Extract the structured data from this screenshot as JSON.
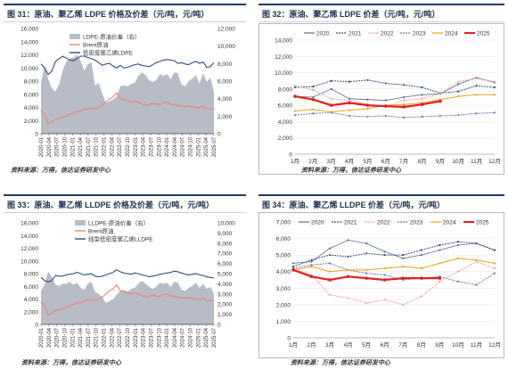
{
  "panels": [
    {
      "title": "图 31：原油、聚乙烯 LDPE 价格及价差（元/吨，元/吨）",
      "source": "资料来源：万得，信达证券研发中心"
    },
    {
      "title": "图 32：原油、聚乙烯 LDPE 价差（元/吨，元/吨）",
      "source": "资料来源：万得，信达证券研发中心"
    },
    {
      "title": "图 33：原油、聚乙烯 LLDPE 价格及价差（元/吨，元/吨）",
      "source": "资料来源：万得，信达证券研发中心"
    },
    {
      "title": "图 34：原油、聚乙烯 LLDPE 价差（元/吨，元/吨）",
      "source": "资料来源：万得，信达证券研发中心"
    }
  ],
  "chart_data": [
    {
      "type": "line",
      "left_ticks": [
        "0",
        "2,000",
        "4,000",
        "6,000",
        "8,000",
        "10,000",
        "12,000",
        "14,000",
        "16,000"
      ],
      "right_ticks": [
        "0",
        "2,000",
        "4,000",
        "6,000",
        "8,000",
        "10,000",
        "12,000"
      ],
      "ylim": [
        0,
        16000
      ],
      "y2lim": [
        0,
        12000
      ],
      "x_ticks": [
        "2020-01",
        "2020-04",
        "2020-07",
        "2020-10",
        "2021-01",
        "2021-04",
        "2021-07",
        "2021-10",
        "2022-01",
        "2022-04",
        "2022-07",
        "2022-10",
        "2023-01",
        "2023-04",
        "2023-07",
        "2023-10",
        "2024-01",
        "2024-04",
        "2024-07",
        "2024-10",
        "2025-01",
        "2025-04",
        "2025-07"
      ],
      "series": [
        {
          "name": "LDPE-原油价差（右）",
          "kind": "area",
          "axis": "right",
          "color": "#b7bcc6",
          "values": [
            5800,
            7800,
            6200,
            5200,
            4800,
            5600,
            7200,
            8200,
            8600,
            8700,
            9000,
            8300,
            7200,
            7900,
            8200,
            5500,
            5800,
            4600,
            3500,
            3700,
            3900,
            4200,
            5400,
            5500,
            5400,
            5700,
            5800,
            6600,
            7000,
            6700,
            6100,
            5900,
            6100,
            6800,
            6600,
            6800,
            6200,
            7000,
            6900,
            5600,
            5400,
            6000,
            6300,
            6700,
            5700,
            6900,
            5900,
            6400,
            4800
          ]
        },
        {
          "name": "Brent原油",
          "kind": "line",
          "axis": "left",
          "color": "#f08078",
          "values": [
            3600,
            3000,
            1500,
            1800,
            2200,
            2300,
            2500,
            2700,
            3000,
            3100,
            3400,
            3400,
            3700,
            3800,
            3900,
            3800,
            4000,
            4300,
            4800,
            5300,
            5600,
            6200,
            5300,
            5200,
            5000,
            4800,
            5000,
            4800,
            4500,
            4300,
            4400,
            4600,
            4500,
            4400,
            4700,
            4800,
            4500,
            4400,
            4300,
            4200,
            4100,
            4200,
            4100,
            4000,
            3900,
            4200,
            3800,
            3700,
            3800
          ]
        },
        {
          "name": "低密度聚乙烯LDPE",
          "kind": "line",
          "axis": "left",
          "color": "#2e4c7a",
          "values": [
            10600,
            10000,
            9000,
            9500,
            11000,
            11400,
            11800,
            11500,
            11200,
            11100,
            11400,
            11800,
            11800,
            11600,
            11400,
            11200,
            10800,
            10400,
            10600,
            10700,
            10300,
            10000,
            10400,
            10000,
            10100,
            10300,
            10500,
            10600,
            10400,
            10300,
            10200,
            10500,
            10800,
            11000,
            11200,
            11300,
            11200,
            11100,
            10700,
            10800,
            10600,
            10500,
            10800,
            11000,
            10700,
            10900,
            10100,
            10200,
            10800
          ]
        }
      ]
    },
    {
      "type": "line",
      "ylim": [
        0,
        14000
      ],
      "y_ticks": [
        "0",
        "2,000",
        "4,000",
        "6,000",
        "8,000",
        "10,000",
        "12,000",
        "14,000"
      ],
      "categories": [
        "1月",
        "2月",
        "3月",
        "4月",
        "5月",
        "6月",
        "7月",
        "8月",
        "9月",
        "10月",
        "11月",
        "12月"
      ],
      "series": [
        {
          "name": "2020",
          "color": "#5d6d85",
          "dash": "none",
          "width": 0.8,
          "values": [
            7100,
            7000,
            8000,
            6800,
            6700,
            6600,
            7000,
            7300,
            7400,
            8600,
            9400,
            8800
          ]
        },
        {
          "name": "2021",
          "color": "#3c4f7e",
          "dash": "2,1",
          "width": 1.0,
          "values": [
            8200,
            8300,
            9000,
            8900,
            9100,
            8700,
            8500,
            8200,
            7500,
            7700,
            8400,
            8200
          ]
        },
        {
          "name": "2022",
          "color": "#f4a0a0",
          "dash": "2,1",
          "width": 1.0,
          "values": [
            8400,
            7900,
            6800,
            6600,
            6100,
            5800,
            6600,
            6800,
            7400,
            8900,
            9300,
            8900
          ]
        },
        {
          "name": "2023",
          "color": "#7878b8",
          "dash": "2,1",
          "width": 1.0,
          "values": [
            4800,
            5000,
            5100,
            4700,
            4600,
            4700,
            4500,
            4600,
            4700,
            4800,
            5000,
            5100
          ]
        },
        {
          "name": "2024",
          "color": "#f0a020",
          "dash": "none",
          "width": 1.0,
          "values": [
            5300,
            5500,
            5200,
            5400,
            5600,
            6000,
            6100,
            6300,
            6700,
            7100,
            7300,
            7300
          ]
        },
        {
          "name": "2025",
          "color": "#e02020",
          "dash": "none",
          "width": 2.2,
          "values": [
            7100,
            6700,
            6000,
            6300,
            6000,
            5900,
            5800,
            6100,
            6500,
            null,
            null,
            null
          ]
        }
      ]
    },
    {
      "type": "line",
      "left_ticks": [
        "0",
        "2,000",
        "4,000",
        "6,000",
        "8,000",
        "10,000",
        "12,000",
        "14,000",
        "16,000"
      ],
      "right_ticks": [
        "0",
        "1,000",
        "2,000",
        "3,000",
        "4,000",
        "5,000",
        "6,000",
        "7,000",
        "8,000",
        "9,000",
        "10,000"
      ],
      "ylim": [
        0,
        16000
      ],
      "y2lim": [
        0,
        10000
      ],
      "x_ticks": [
        "2020-01",
        "2020-04",
        "2020-07",
        "2020-10",
        "2021-01",
        "2021-04",
        "2021-07",
        "2021-10",
        "2022-01",
        "2022-04",
        "2022-07",
        "2022-10",
        "2023-01",
        "2023-04",
        "2023-07",
        "2023-10",
        "2024-01",
        "2024-04",
        "2024-07",
        "2024-10",
        "2025-01",
        "2025-04",
        "2025-07"
      ],
      "series": [
        {
          "name": "LLDPE-原油价差（右）",
          "kind": "area",
          "axis": "right",
          "color": "#b7bcc6",
          "values": [
            3300,
            3900,
            5200,
            4700,
            3900,
            3800,
            4000,
            4000,
            4200,
            3900,
            4100,
            3600,
            3400,
            4000,
            4200,
            3200,
            3000,
            2700,
            2100,
            2300,
            2500,
            2900,
            3300,
            3400,
            3200,
            3500,
            3600,
            4000,
            4300,
            4000,
            3700,
            3500,
            3700,
            4100,
            4000,
            4100,
            3700,
            4200,
            4100,
            3400,
            3300,
            3600,
            3800,
            4100,
            3600,
            4000,
            3500,
            3700,
            3000
          ]
        },
        {
          "name": "Brent原油",
          "kind": "line",
          "axis": "left",
          "color": "#f08078",
          "values": [
            3600,
            3000,
            1500,
            1800,
            2200,
            2300,
            2500,
            2700,
            3000,
            3100,
            3400,
            3400,
            3700,
            3800,
            3900,
            3800,
            4000,
            4300,
            4800,
            5300,
            5600,
            6200,
            5300,
            5200,
            5000,
            4800,
            5000,
            4800,
            4500,
            4300,
            4400,
            4600,
            4500,
            4400,
            4700,
            4800,
            4500,
            4400,
            4300,
            4200,
            4100,
            4200,
            4100,
            4000,
            3900,
            4200,
            3800,
            3700,
            3800
          ]
        },
        {
          "name": "线型低密度聚乙烯LLDPE",
          "kind": "line",
          "axis": "left",
          "color": "#2e4c7a",
          "values": [
            7400,
            6900,
            6700,
            6900,
            7700,
            7600,
            7600,
            7800,
            7900,
            8000,
            8200,
            8000,
            7800,
            7900,
            8000,
            7600,
            7500,
            7600,
            7800,
            8000,
            8200,
            8600,
            8300,
            8100,
            8000,
            7900,
            8100,
            8000,
            7800,
            7700,
            7500,
            7600,
            7700,
            7900,
            8000,
            8100,
            8200,
            8400,
            8300,
            8100,
            7900,
            7800,
            7900,
            8000,
            7800,
            7700,
            7500,
            7400,
            7300
          ]
        }
      ]
    },
    {
      "type": "line",
      "ylim": [
        0,
        7000
      ],
      "y_ticks": [
        "0",
        "1,000",
        "2,000",
        "3,000",
        "4,000",
        "5,000",
        "6,000",
        "7,000"
      ],
      "categories": [
        "1月",
        "2月",
        "3月",
        "4月",
        "5月",
        "6月",
        "7月",
        "8月",
        "9月",
        "10月",
        "11月",
        "12月"
      ],
      "series": [
        {
          "name": "2020",
          "color": "#5d6d85",
          "dash": "none",
          "width": 0.8,
          "values": [
            4500,
            4600,
            5400,
            5900,
            5700,
            5200,
            4800,
            5000,
            5300,
            5600,
            5700,
            5300
          ]
        },
        {
          "name": "2021",
          "color": "#3c4f7e",
          "dash": "2,1",
          "width": 1.0,
          "values": [
            4300,
            4700,
            5000,
            4900,
            5100,
            5000,
            5000,
            5300,
            5600,
            5800,
            5700,
            5300
          ]
        },
        {
          "name": "2022",
          "color": "#f4a0a0",
          "dash": "2,1",
          "width": 1.0,
          "values": [
            4200,
            3800,
            2600,
            2400,
            2100,
            2300,
            2000,
            2500,
            3400,
            4000,
            4600,
            4200
          ]
        },
        {
          "name": "2023",
          "color": "#7878b8",
          "dash": "2,1",
          "width": 1.0,
          "values": [
            4200,
            4400,
            4500,
            4100,
            3900,
            3800,
            3500,
            3600,
            3700,
            3400,
            3200,
            3900
          ]
        },
        {
          "name": "2024",
          "color": "#f0a020",
          "dash": "none",
          "width": 1.0,
          "values": [
            4100,
            4300,
            4000,
            4100,
            4100,
            4200,
            4300,
            4200,
            4500,
            4800,
            4700,
            4500
          ]
        },
        {
          "name": "2025",
          "color": "#e02020",
          "dash": "none",
          "width": 2.2,
          "values": [
            4100,
            3700,
            3500,
            3700,
            3600,
            3500,
            3600,
            3600,
            3600,
            null,
            null,
            null
          ]
        }
      ]
    }
  ]
}
